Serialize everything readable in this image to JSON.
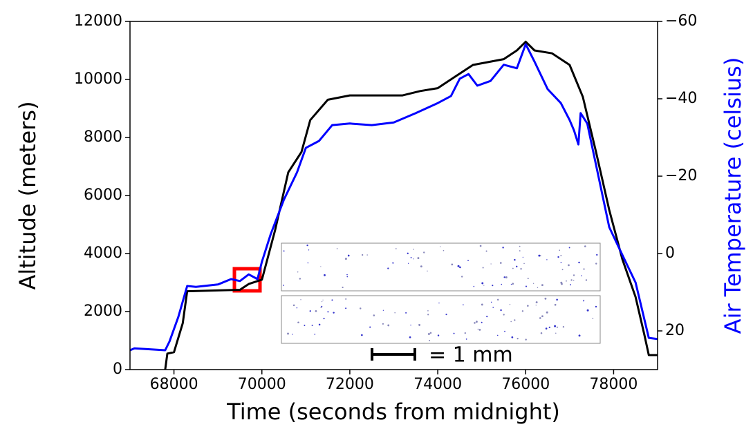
{
  "chart_data": {
    "type": "line",
    "xlabel": "Time (seconds from midnight)",
    "ylabel": "Altitude (meters)",
    "y2label": "Air Temperature (celsius)",
    "annotation": "= 1 mm",
    "xlim": [
      67000,
      79000
    ],
    "xticks": [
      68000,
      70000,
      72000,
      74000,
      76000,
      78000
    ],
    "ylim": [
      0,
      12000
    ],
    "yticks": [
      0,
      2000,
      4000,
      6000,
      8000,
      10000,
      12000
    ],
    "y2lim": [
      30,
      -60
    ],
    "y2ticks": [
      {
        "value": -60,
        "label": "−60"
      },
      {
        "value": -40,
        "label": "−40"
      },
      {
        "value": -20,
        "label": "−20"
      },
      0,
      20
    ],
    "series": [
      {
        "name": "Altitude",
        "color": "#000000",
        "x": [
          67800,
          67850,
          68000,
          68200,
          68300,
          69500,
          69700,
          70000,
          70300,
          70600,
          70900,
          71100,
          71500,
          72000,
          73200,
          73600,
          74000,
          74400,
          74800,
          75500,
          75800,
          76000,
          76200,
          76600,
          77000,
          77300,
          77600,
          77900,
          78200,
          78500,
          78700,
          78800,
          79000
        ],
        "values": [
          0,
          550,
          600,
          1600,
          2700,
          2750,
          2950,
          3100,
          4800,
          6800,
          7500,
          8600,
          9300,
          9450,
          9450,
          9600,
          9700,
          10100,
          10500,
          10700,
          11000,
          11300,
          11000,
          10900,
          10500,
          9400,
          7500,
          5500,
          3800,
          2500,
          1200,
          500,
          500
        ]
      },
      {
        "name": "Air Temperature",
        "color": "#0000ff",
        "axis": "y2",
        "x": [
          67000,
          67100,
          67800,
          67900,
          68100,
          68300,
          68500,
          69000,
          69300,
          69500,
          69700,
          69900,
          70000,
          70200,
          70500,
          70800,
          71000,
          71300,
          71600,
          72000,
          72500,
          73000,
          73500,
          74000,
          74300,
          74500,
          74700,
          74900,
          75200,
          75500,
          75800,
          76000,
          76200,
          76500,
          76800,
          77000,
          77100,
          77200,
          77250,
          77400,
          77600,
          77900,
          78200,
          78500,
          78800,
          79000
        ],
        "values": [
          25,
          24.5,
          25,
          22.7,
          16.4,
          8.4,
          8.6,
          8,
          6.6,
          7.1,
          5.4,
          6.6,
          2.1,
          -5,
          -13.9,
          -21,
          -27.3,
          -29.1,
          -33.2,
          -33.6,
          -33.2,
          -33.9,
          -36.3,
          -38.9,
          -40.7,
          -45.2,
          -46.4,
          -43.4,
          -44.6,
          -48.8,
          -47.9,
          -54.1,
          -49.6,
          -42.5,
          -38.9,
          -34.5,
          -31.8,
          -28.2,
          -36.3,
          -33.6,
          -22.9,
          -6.8,
          0.4,
          7.5,
          21.8,
          22.1
        ]
      }
    ]
  }
}
